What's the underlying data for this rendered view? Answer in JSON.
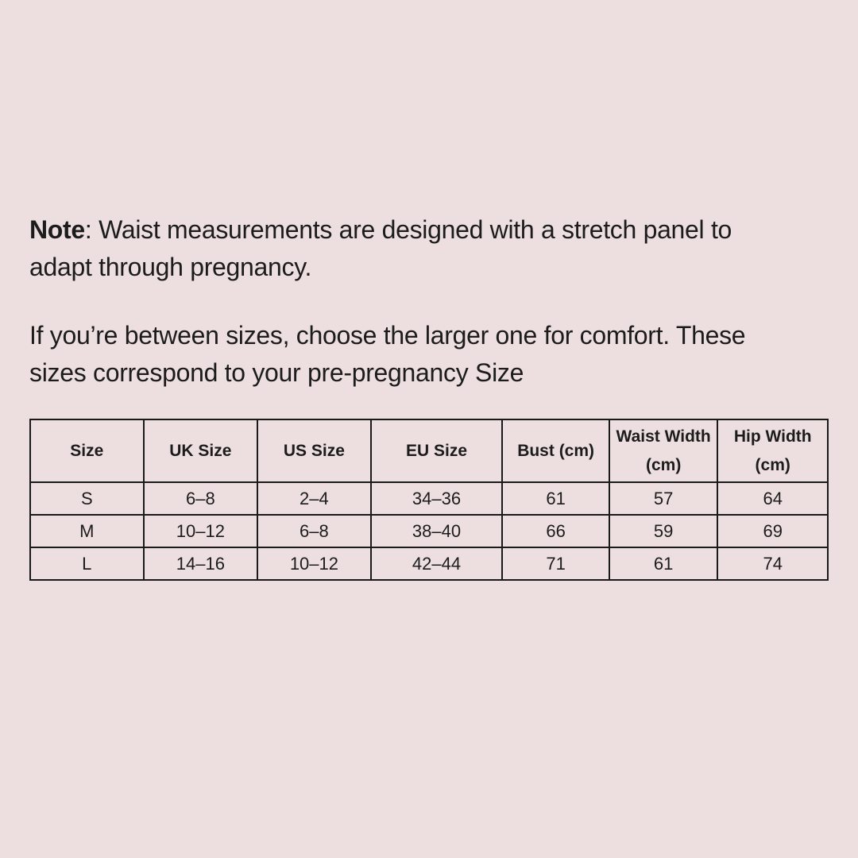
{
  "colors": {
    "background": "#EDDFDF",
    "text": "#1C1C1C",
    "table_border": "#1A1A1A"
  },
  "note": {
    "label": "Note",
    "line1": ": Waist measurements are designed with a stretch panel to",
    "line2": "adapt through pregnancy."
  },
  "advice": {
    "line1": "If you’re between sizes, choose the larger one for comfort. These",
    "line2": "sizes correspond to your pre-pregnancy Size"
  },
  "table": {
    "columns": [
      "Size",
      "UK Size",
      "US Size",
      "EU Size",
      "Bust (cm)",
      "Waist Width (cm)",
      "Hip Width (cm)"
    ],
    "rows": [
      [
        "S",
        "6–8",
        "2–4",
        "34–36",
        "61",
        "57",
        "64"
      ],
      [
        "M",
        "10–12",
        "6–8",
        "38–40",
        "66",
        "59",
        "69"
      ],
      [
        "L",
        "14–16",
        "10–12",
        "42–44",
        "71",
        "61",
        "74"
      ]
    ]
  }
}
